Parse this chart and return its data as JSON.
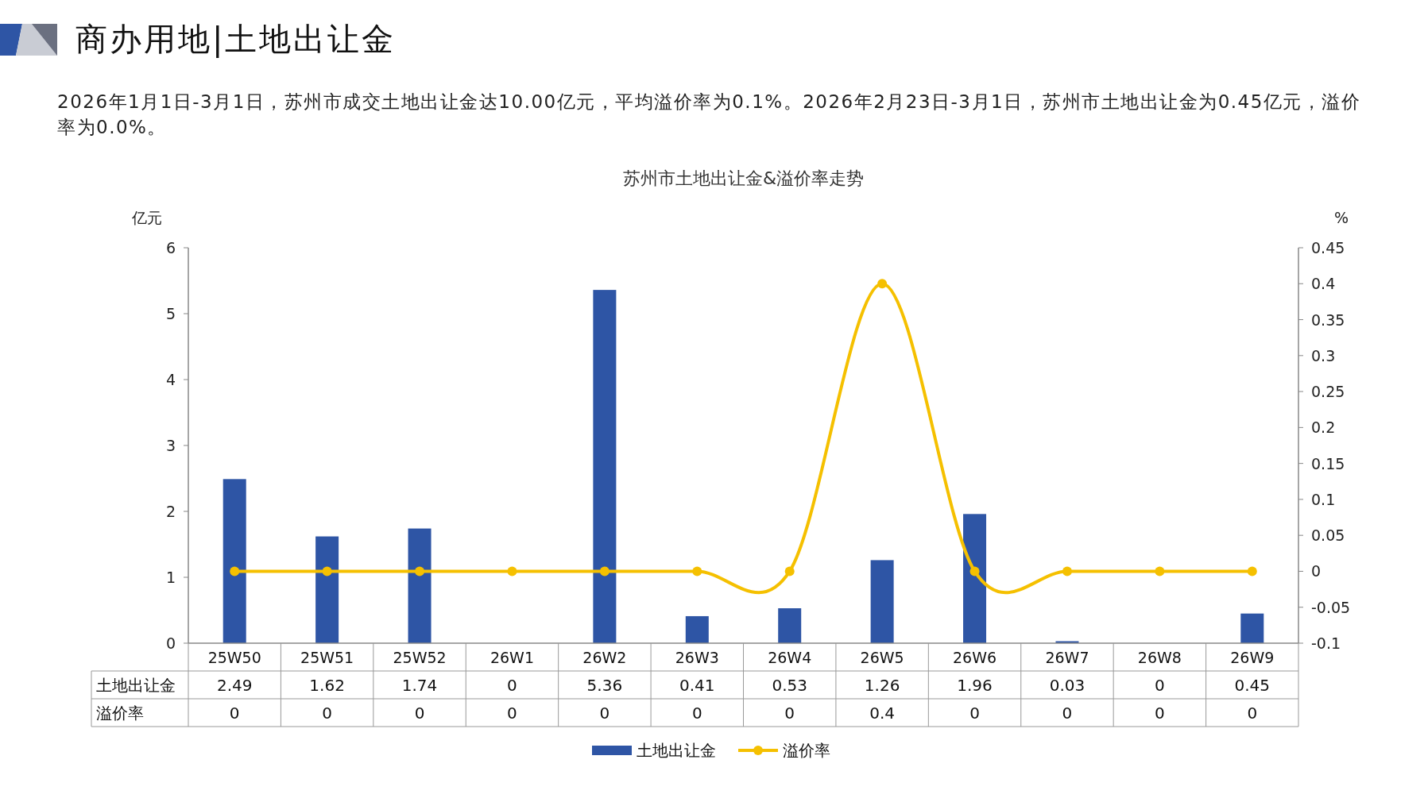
{
  "chart_data": {
    "type": "bar",
    "title": "商办用地|土地出让金",
    "subtitle": "2026年1月1日-3月1日，苏州市成交土地出让金达10.00亿元，平均溢价率为0.1%。2026年2月23日-3月1日，苏州市土地出让金为0.45亿元，溢价率为0.0%。",
    "annotations": [
      "苏州市土地出让金&溢价率走势"
    ],
    "ylabel": "亿元",
    "y2label": "%",
    "categories": [
      "25W50",
      "25W51",
      "25W52",
      "26W1",
      "26W2",
      "26W3",
      "26W4",
      "26W5",
      "26W6",
      "26W7",
      "26W8",
      "26W9"
    ],
    "series": [
      {
        "name": "土地出让金",
        "color": "#2e55a5",
        "values": [
          2.49,
          1.62,
          1.74,
          0,
          5.36,
          0.41,
          0.53,
          1.26,
          1.96,
          0.03,
          0,
          0.45
        ]
      },
      {
        "name": "溢价率",
        "type": "line",
        "axis": "y2",
        "color": "#f5c000",
        "marker": "circle",
        "values": [
          0,
          0,
          0,
          0,
          0,
          0,
          0,
          0.4,
          0,
          0,
          0,
          0
        ]
      }
    ],
    "ylim": [
      0,
      6
    ],
    "yticks": [
      0,
      1,
      2,
      3,
      4,
      5,
      6
    ],
    "y2lim": [
      -0.1,
      0.45
    ],
    "y2ticks": [
      -0.1,
      -0.05,
      0,
      0.05,
      0.1,
      0.15,
      0.2,
      0.25,
      0.3,
      0.35,
      0.4,
      0.45
    ],
    "data_labels": true,
    "legend": "bottom",
    "grid": false
  }
}
